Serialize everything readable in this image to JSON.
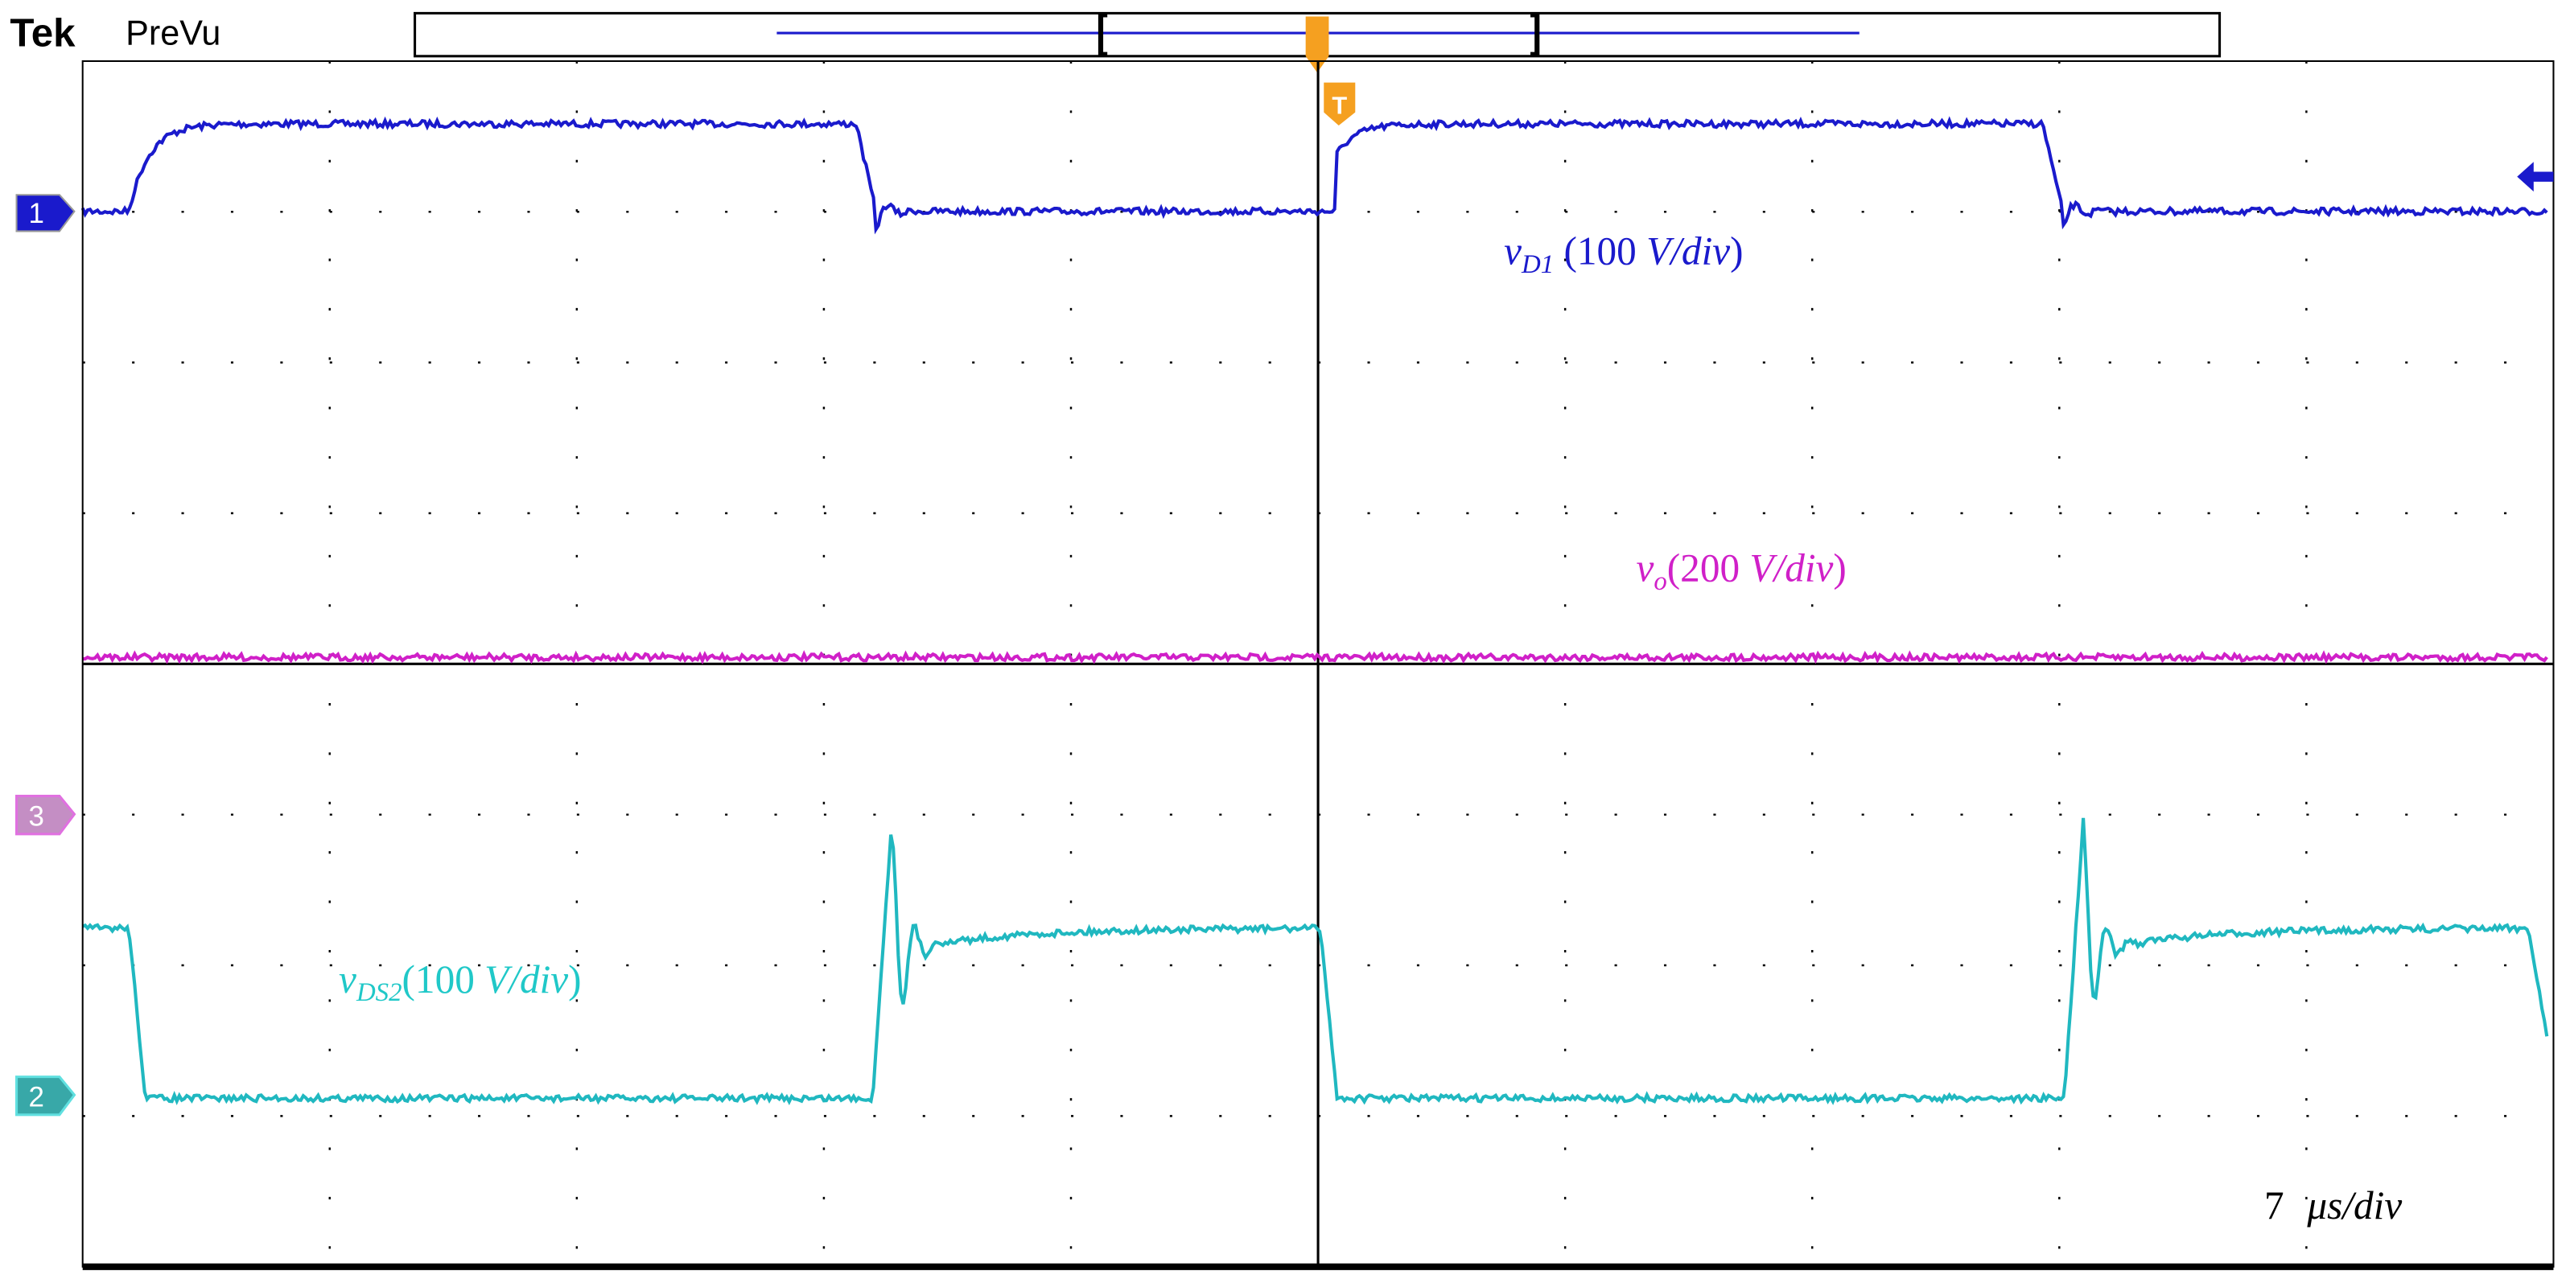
{
  "header": {
    "brand": "Tek",
    "mode": "PreVu"
  },
  "markers": {
    "trigger": "T",
    "channels": [
      "1",
      "3",
      "2"
    ]
  },
  "labels": {
    "vd1": {
      "symbol": "v",
      "subscript": "D1",
      "scale_open": " (100 ",
      "scale_unit": "V/div",
      "scale_close": ")"
    },
    "vo": {
      "symbol": "v",
      "subscript": "o",
      "scale_open": "(200 ",
      "scale_unit": "V/div",
      "scale_close": ")"
    },
    "vds2": {
      "symbol": "v",
      "subscript": "DS2",
      "scale_open": "(100 ",
      "scale_unit": "V/div",
      "scale_close": ")"
    },
    "timebase": {
      "value": "7",
      "unit": "μs/div"
    }
  }
}
